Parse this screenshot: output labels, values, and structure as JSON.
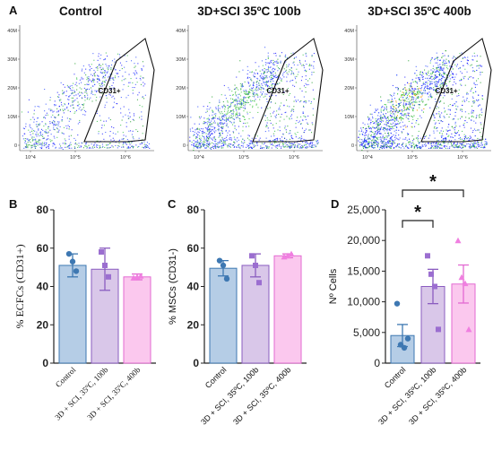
{
  "flow": {
    "panel_letter": "A",
    "titles": [
      "Control",
      "3D+SCI 35ºC 100b",
      "3D+SCI 35ºC 400b"
    ],
    "gate_label": "CD31+",
    "y_ticks": [
      "40M",
      "30M",
      "20M",
      "10M",
      "0"
    ],
    "x_ticks": [
      "10^4",
      "10^5",
      "10^6"
    ]
  },
  "chart_data": [
    {
      "type": "bar",
      "panel": "B",
      "ylabel": "% ECFCs (CD31+)",
      "ylim": [
        0,
        80
      ],
      "yticks": [
        0,
        20,
        40,
        60,
        80
      ],
      "categories": [
        "Control",
        "3D + SCI, 35ºC, 100b",
        "3D + SCI, 35ºC, 400b"
      ],
      "values": [
        51,
        49,
        45
      ],
      "errors": [
        6,
        11,
        1.5
      ],
      "colors": [
        "#b5cde6",
        "#d9c7e9",
        "#fbc8ee"
      ],
      "edge_colors": [
        "#3e78b2",
        "#8a5cc0",
        "#e36ad2"
      ],
      "points": [
        [
          57,
          53,
          48
        ],
        [
          58,
          51,
          45
        ],
        [
          44.5,
          45,
          45.5
        ]
      ]
    },
    {
      "type": "bar",
      "panel": "C",
      "ylabel": "% MSCs (CD31-)",
      "ylim": [
        0,
        80
      ],
      "yticks": [
        0,
        20,
        40,
        60,
        80
      ],
      "categories": [
        "Control",
        "3D + SCI, 35ºC, 100b",
        "3D + SCI, 35ºC, 400b"
      ],
      "values": [
        49.5,
        51,
        56
      ],
      "errors": [
        4,
        6,
        1
      ],
      "colors": [
        "#b5cde6",
        "#d9c7e9",
        "#fbc8ee"
      ],
      "edge_colors": [
        "#3e78b2",
        "#8a5cc0",
        "#e36ad2"
      ],
      "points": [
        [
          53.5,
          51,
          44
        ],
        [
          56,
          51,
          42
        ],
        [
          55.5,
          56,
          57
        ]
      ]
    },
    {
      "type": "bar",
      "panel": "D",
      "ylabel": "Nº Cells",
      "ylim": [
        0,
        25000
      ],
      "yticks": [
        0,
        5000,
        10000,
        15000,
        20000,
        25000
      ],
      "ytick_labels": [
        "0",
        "5,000",
        "10,000",
        "15,000",
        "20,000",
        "25,000"
      ],
      "categories": [
        "Control",
        "3D + SCI, 35ºC, 100b",
        "3D + SCI, 35ºC, 400b"
      ],
      "values": [
        4500,
        12500,
        12900
      ],
      "errors": [
        1800,
        2800,
        3100
      ],
      "colors": [
        "#b5cde6",
        "#d9c7e9",
        "#fbc8ee"
      ],
      "edge_colors": [
        "#3e78b2",
        "#8a5cc0",
        "#e36ad2"
      ],
      "points": [
        [
          9700,
          3000,
          2500,
          4000
        ],
        [
          17500,
          14500,
          12500,
          5500
        ],
        [
          20000,
          14000,
          13000,
          5500
        ]
      ],
      "significance": [
        {
          "from": 0,
          "to": 1,
          "label": "*"
        },
        {
          "from": 0,
          "to": 2,
          "label": "*"
        }
      ]
    }
  ]
}
